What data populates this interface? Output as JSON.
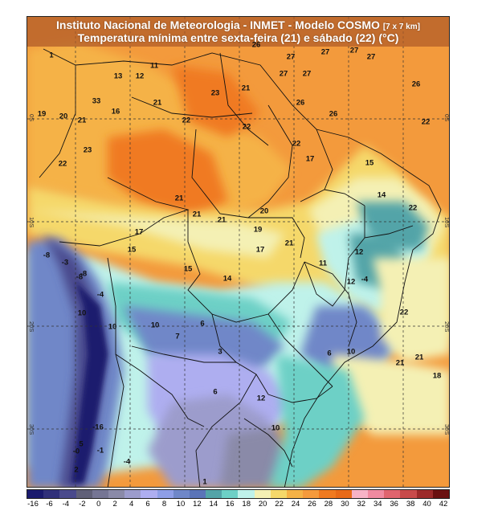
{
  "title": {
    "line1": "Instituto Nacional de Meteorologia - INMET - Modelo COSMO",
    "line1_suffix": "[7 x 7 km]",
    "line2": "Temperatura mínima entre sexta-feira (21) e sábado (22) (°C)"
  },
  "latitude_labels": [
    "0S",
    "10S",
    "20S",
    "30S"
  ],
  "color_scale": {
    "tick_labels": [
      "-16",
      "-6",
      "-4",
      "-2",
      "0",
      "2",
      "4",
      "6",
      "8",
      "10",
      "12",
      "14",
      "16",
      "18",
      "20",
      "22",
      "24",
      "26",
      "28",
      "30",
      "32",
      "34",
      "36",
      "38",
      "40",
      "42"
    ],
    "colors": [
      "#1a1a6e",
      "#30307a",
      "#4a4a8c",
      "#606078",
      "#757594",
      "#8a8aa8",
      "#9c9ccc",
      "#aeaef0",
      "#8e9ee6",
      "#6f87c8",
      "#5a74b8",
      "#53a4a8",
      "#6dd0c6",
      "#bff2ea",
      "#f4f0b4",
      "#f5d86a",
      "#f5b246",
      "#f59a3c",
      "#f07a20",
      "#e86a18",
      "#f7b3c6",
      "#f08aa0",
      "#e0646e",
      "#c84a4a",
      "#9c2a2a",
      "#6a1010"
    ]
  },
  "temperature_labels": [
    "1",
    "11",
    "13",
    "12",
    "33",
    "16",
    "21",
    "19",
    "20",
    "21",
    "23",
    "22",
    "23",
    "21",
    "22",
    "22",
    "26",
    "27",
    "27",
    "27",
    "27",
    "27",
    "27",
    "26",
    "26",
    "26",
    "22",
    "22",
    "17",
    "15",
    "14",
    "22",
    "21",
    "21",
    "21",
    "20",
    "19",
    "21",
    "17",
    "17",
    "15",
    "15",
    "14",
    "11",
    "12",
    "12",
    "-4",
    "-8",
    "-3",
    "-8",
    "-8",
    "-4",
    "10",
    "10",
    "10",
    "7",
    "6",
    "3",
    "6",
    "12",
    "10",
    "6",
    "10",
    "22",
    "21",
    "21",
    "18",
    "-16",
    "5",
    "-0",
    "-1",
    "-4",
    "2",
    "1"
  ]
}
